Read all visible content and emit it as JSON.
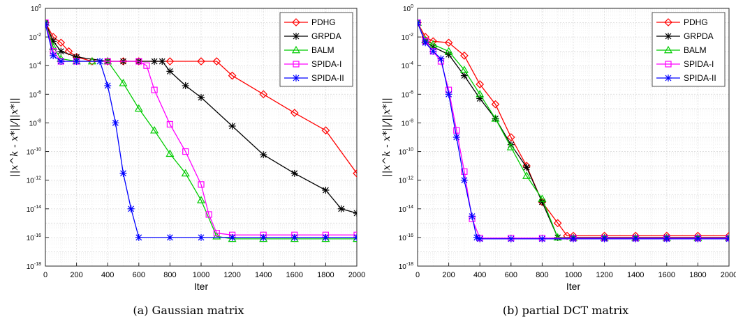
{
  "figure": {
    "title": "",
    "captions": [
      "(a)  Gaussian matrix",
      "(b)  partial DCT matrix"
    ]
  },
  "colors": {
    "PDHG": "#ff0000",
    "GRPDA": "#000000",
    "BALM": "#00cc00",
    "SPIDA-I": "#ff00ff",
    "SPIDA-II": "#0000ff",
    "grid": "#dcdcdc",
    "axis": "#262626"
  },
  "chart_data": [
    {
      "type": "line",
      "title": "",
      "xlabel": "Iter",
      "ylabel": "||x^k - x*||/||x*||",
      "xlim": [
        0,
        2000
      ],
      "ylim": [
        1e-18,
        1
      ],
      "yscale": "log",
      "grid": true,
      "legend": "top-right",
      "xticks": [
        "0",
        "200",
        "400",
        "600",
        "800",
        "1000",
        "1200",
        "1400",
        "1600",
        "1800",
        "2000"
      ],
      "yticks": [
        {
          "base": "10",
          "exp": "-18"
        },
        {
          "base": "10",
          "exp": "-16"
        },
        {
          "base": "10",
          "exp": "-14"
        },
        {
          "base": "10",
          "exp": "-12"
        },
        {
          "base": "10",
          "exp": "-10"
        },
        {
          "base": "10",
          "exp": "-8"
        },
        {
          "base": "10",
          "exp": "-6"
        },
        {
          "base": "10",
          "exp": "-4"
        },
        {
          "base": "10",
          "exp": "-2"
        },
        {
          "base": "10",
          "exp": "0"
        }
      ],
      "series": [
        {
          "name": "PDHG",
          "marker": "diamond",
          "x": [
            0,
            50,
            100,
            150,
            200,
            300,
            400,
            500,
            600,
            800,
            1000,
            1100,
            1200,
            1400,
            1600,
            1800,
            2000
          ],
          "y": [
            0.1,
            0.01,
            0.004,
            0.001,
            0.0004,
            0.0002,
            0.0002,
            0.0002,
            0.0002,
            0.0002,
            0.0002,
            0.0002,
            2e-05,
            1e-06,
            5e-08,
            3e-09,
            3e-12
          ]
        },
        {
          "name": "GRPDA",
          "marker": "star",
          "x": [
            0,
            50,
            100,
            200,
            400,
            500,
            600,
            700,
            750,
            800,
            900,
            1000,
            1200,
            1400,
            1600,
            1800,
            1900,
            2000
          ],
          "y": [
            0.1,
            0.005,
            0.001,
            0.0004,
            0.0002,
            0.0002,
            0.0002,
            0.0002,
            0.0002,
            4e-05,
            4e-06,
            6e-07,
            6e-09,
            6e-11,
            3e-12,
            2e-13,
            1e-14,
            5e-15
          ]
        },
        {
          "name": "BALM",
          "marker": "triangle",
          "x": [
            0,
            50,
            100,
            200,
            300,
            400,
            500,
            600,
            700,
            800,
            900,
            1000,
            1100,
            1200,
            1400,
            1600,
            1800,
            2000
          ],
          "y": [
            0.1,
            0.002,
            0.0003,
            0.0002,
            0.0002,
            0.0002,
            6e-06,
            1e-07,
            3e-09,
            7e-11,
            3e-12,
            4e-14,
            1.2e-16,
            8e-17,
            8e-17,
            8e-17,
            8e-17,
            8e-17
          ]
        },
        {
          "name": "SPIDA-I",
          "marker": "square",
          "x": [
            0,
            50,
            100,
            200,
            400,
            600,
            650,
            700,
            800,
            900,
            1000,
            1050,
            1100,
            1200,
            1400,
            1600,
            1800,
            2000
          ],
          "y": [
            0.1,
            0.001,
            0.0002,
            0.0002,
            0.0002,
            0.0002,
            0.0001,
            2e-06,
            8e-09,
            1e-10,
            5e-13,
            4e-15,
            2e-16,
            1.5e-16,
            1.5e-16,
            1.5e-16,
            1.5e-16,
            1.5e-16
          ]
        },
        {
          "name": "SPIDA-II",
          "marker": "asterisk",
          "x": [
            0,
            50,
            100,
            200,
            350,
            400,
            450,
            500,
            550,
            600,
            800,
            1000,
            1200,
            1400,
            1600,
            1800,
            2000
          ],
          "y": [
            0.08,
            0.0005,
            0.0002,
            0.0002,
            0.0002,
            4e-06,
            1e-08,
            3e-12,
            1e-14,
            1e-16,
            1e-16,
            1e-16,
            1e-16,
            1e-16,
            1e-16,
            1e-16,
            1e-16
          ]
        }
      ]
    },
    {
      "type": "line",
      "title": "",
      "xlabel": "Iter",
      "ylabel": "||x^k - x*||/||x*||",
      "xlim": [
        0,
        2000
      ],
      "ylim": [
        1e-18,
        1
      ],
      "yscale": "log",
      "grid": true,
      "legend": "top-right",
      "xticks": [
        "0",
        "200",
        "400",
        "600",
        "800",
        "1000",
        "1200",
        "1400",
        "1600",
        "1800",
        "2000"
      ],
      "yticks": [
        {
          "base": "10",
          "exp": "-18"
        },
        {
          "base": "10",
          "exp": "-16"
        },
        {
          "base": "10",
          "exp": "-14"
        },
        {
          "base": "10",
          "exp": "-12"
        },
        {
          "base": "10",
          "exp": "-10"
        },
        {
          "base": "10",
          "exp": "-8"
        },
        {
          "base": "10",
          "exp": "-6"
        },
        {
          "base": "10",
          "exp": "-4"
        },
        {
          "base": "10",
          "exp": "-2"
        },
        {
          "base": "10",
          "exp": "0"
        }
      ],
      "series": [
        {
          "name": "PDHG",
          "marker": "diamond",
          "x": [
            0,
            50,
            100,
            200,
            300,
            400,
            500,
            600,
            700,
            800,
            900,
            960,
            1000,
            1200,
            1400,
            1600,
            1800,
            2000
          ],
          "y": [
            0.1,
            0.01,
            0.005,
            0.004,
            0.0005,
            5e-06,
            2e-07,
            1e-09,
            1e-11,
            3e-14,
            1e-15,
            1.3e-16,
            1.3e-16,
            1.3e-16,
            1.3e-16,
            1.3e-16,
            1.3e-16,
            1.3e-16
          ]
        },
        {
          "name": "GRPDA",
          "marker": "star",
          "x": [
            0,
            50,
            100,
            200,
            300,
            400,
            500,
            600,
            700,
            800,
            900,
            1000,
            1200,
            1400,
            1600,
            1800,
            2000
          ],
          "y": [
            0.1,
            0.005,
            0.002,
            0.0006,
            2e-05,
            5e-07,
            2e-08,
            3e-10,
            8e-12,
            3e-14,
            1e-16,
            1e-16,
            1e-16,
            1e-16,
            1e-16,
            1e-16,
            1e-16
          ]
        },
        {
          "name": "BALM",
          "marker": "triangle",
          "x": [
            0,
            50,
            100,
            200,
            300,
            400,
            500,
            600,
            700,
            800,
            900,
            1000,
            1200,
            1400,
            1600,
            1800,
            2000
          ],
          "y": [
            0.1,
            0.006,
            0.003,
            0.001,
            5e-05,
            1e-06,
            2e-08,
            2e-10,
            2e-12,
            5e-14,
            1e-16,
            9e-17,
            9e-17,
            9e-17,
            9e-17,
            9e-17,
            9e-17
          ]
        },
        {
          "name": "SPIDA-I",
          "marker": "square",
          "x": [
            0,
            50,
            100,
            150,
            200,
            250,
            300,
            350,
            400,
            600,
            800,
            1000,
            1200,
            1400,
            1600,
            1800,
            2000
          ],
          "y": [
            0.1,
            0.005,
            0.001,
            0.0002,
            2e-06,
            3e-09,
            4e-12,
            2e-15,
            9e-17,
            9e-17,
            9e-17,
            9e-17,
            9e-17,
            9e-17,
            9e-17,
            9e-17,
            9e-17
          ]
        },
        {
          "name": "SPIDA-II",
          "marker": "asterisk",
          "x": [
            0,
            50,
            100,
            150,
            200,
            250,
            300,
            350,
            380,
            400,
            600,
            800,
            1000,
            1200,
            1400,
            1600,
            1800,
            2000
          ],
          "y": [
            0.1,
            0.004,
            0.001,
            0.0003,
            1e-06,
            1e-09,
            1e-12,
            3e-15,
            1e-16,
            8e-17,
            8e-17,
            8e-17,
            8e-17,
            8e-17,
            8e-17,
            8e-17,
            8e-17,
            8e-17
          ]
        }
      ]
    }
  ]
}
